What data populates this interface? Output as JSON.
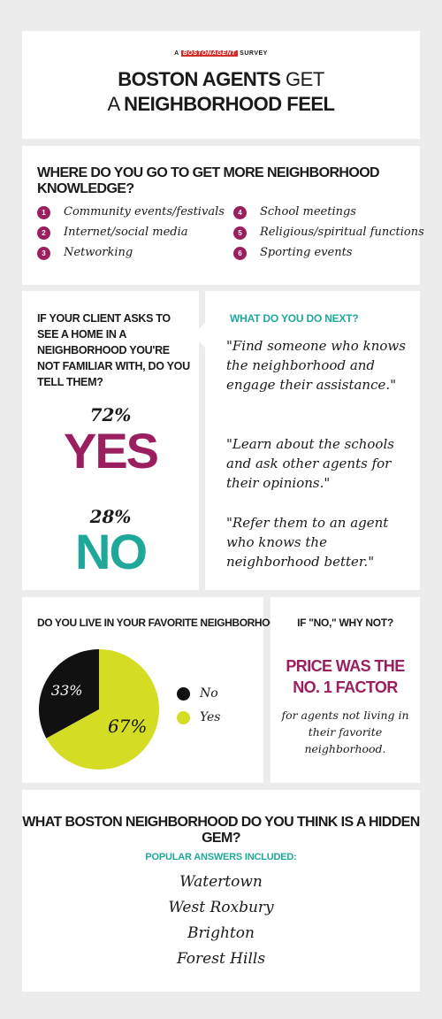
{
  "header": {
    "kicker_pre": "A",
    "kicker_brand": "BOSTONAGENT",
    "kicker_post": "SURVEY",
    "title_line1_bold": "BOSTON AGENTS",
    "title_line1_light": "GET",
    "title_line2_light": "A",
    "title_line2_bold": "NEIGHBORHOOD FEEL"
  },
  "knowledge": {
    "question": "WHERE DO YOU GO TO GET MORE NEIGHBORHOOD KNOWLEDGE?",
    "items": [
      {
        "num": "1",
        "label": "Community events/festivals"
      },
      {
        "num": "2",
        "label": "Internet/social media"
      },
      {
        "num": "3",
        "label": "Networking"
      },
      {
        "num": "4",
        "label": "School meetings"
      },
      {
        "num": "5",
        "label": "Religious/spiritual functions"
      },
      {
        "num": "6",
        "label": "Sporting events"
      }
    ]
  },
  "client": {
    "question": "IF YOUR CLIENT ASKS TO SEE A HOME IN A NEIGHBORHOOD YOU'RE NOT FAMILIAR WITH, DO YOU TELL THEM?",
    "yes_pct": "72%",
    "yes_label": "YES",
    "no_pct": "28%",
    "no_label": "NO"
  },
  "next": {
    "label": "WHAT DO YOU DO NEXT?",
    "quotes": [
      "\"Find someone who knows the neighborhood and engage their assistance.\"",
      "\"Learn about the schools and ask other agents for their opinions.\"",
      "\"Refer them to an agent who knows the neighborhood better.\""
    ]
  },
  "favorite": {
    "question": "DO YOU LIVE IN YOUR FAVORITE NEIGHBORHOOD?"
  },
  "why_not": {
    "question": "IF \"NO,\" WHY NOT?",
    "headline_1": "PRICE WAS THE",
    "headline_2": "NO. 1 FACTOR",
    "body": "for agents not living in their favorite neighborhood."
  },
  "hidden_gem": {
    "question": "WHAT BOSTON NEIGHBORHOOD DO YOU THINK IS A HIDDEN GEM?",
    "subhead": "POPULAR ANSWERS INCLUDED:",
    "answers": [
      "Watertown",
      "West Roxbury",
      "Brighton",
      "Forest Hills"
    ]
  },
  "colors": {
    "magenta": "#9b1f5e",
    "teal": "#1fa899",
    "lime": "#d4dd24",
    "black": "#111111"
  },
  "chart_data": [
    {
      "type": "bar",
      "title": "IF YOUR CLIENT ASKS TO SEE A HOME IN A NEIGHBORHOOD YOU'RE NOT FAMILIAR WITH, DO YOU TELL THEM?",
      "categories": [
        "YES",
        "NO"
      ],
      "values": [
        72,
        28
      ]
    },
    {
      "type": "pie",
      "title": "DO YOU LIVE IN YOUR FAVORITE NEIGHBORHOOD?",
      "categories": [
        "No",
        "Yes"
      ],
      "values": [
        33,
        67
      ],
      "value_labels": [
        "33%",
        "67%"
      ],
      "colors": [
        "#111111",
        "#d4dd24"
      ],
      "legend": "right"
    }
  ]
}
